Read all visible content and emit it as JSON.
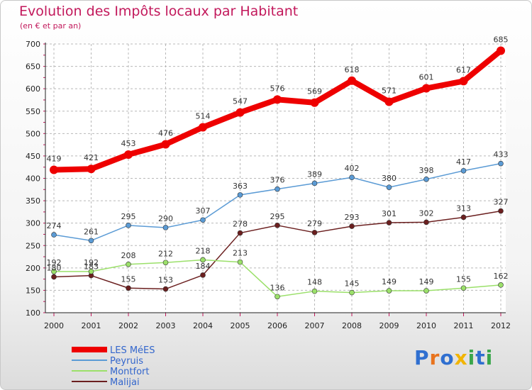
{
  "header": {
    "title": "Evolution des Impôts locaux par Habitant",
    "subtitle": "(en € et par an)"
  },
  "logo": {
    "text": "Proxiti",
    "letters": [
      "P",
      "r",
      "o",
      "x",
      "i",
      "t",
      "i"
    ],
    "colors": [
      "#2f6fd0",
      "#e8731d",
      "#2f6fd0",
      "#f2b400",
      "#3aa64b",
      "#2f6fd0",
      "#3aa64b"
    ]
  },
  "chart_data": {
    "type": "line",
    "title": "Evolution des Impôts locaux par Habitant",
    "subtitle": "(en € et par an)",
    "xlabel": "",
    "ylabel": "",
    "x": [
      "2000",
      "2001",
      "2002",
      "2003",
      "2004",
      "2005",
      "2006",
      "2007",
      "2008",
      "2009",
      "2010",
      "2011",
      "2012"
    ],
    "ylim": [
      100,
      700
    ],
    "yticks": [
      100,
      150,
      200,
      250,
      300,
      350,
      400,
      450,
      500,
      550,
      600,
      650,
      700
    ],
    "grid": true,
    "legend_position": "bottom-left",
    "series": [
      {
        "name": "LES MéES",
        "color": "#ee0000",
        "legend_color": "#3366cc",
        "width": 8,
        "marker": 6,
        "values": [
          419,
          421,
          453,
          476,
          514,
          547,
          576,
          569,
          618,
          571,
          601,
          617,
          685
        ]
      },
      {
        "name": "Peyruis",
        "color": "#5b9bd5",
        "legend_color": "#3366cc",
        "width": 1.5,
        "marker": 3.5,
        "values": [
          274,
          261,
          295,
          290,
          307,
          363,
          376,
          389,
          402,
          380,
          398,
          417,
          433
        ]
      },
      {
        "name": "Montfort",
        "color": "#9be06a",
        "legend_color": "#3366cc",
        "width": 1.5,
        "marker": 3.5,
        "values": [
          192,
          192,
          208,
          212,
          218,
          213,
          136,
          148,
          145,
          149,
          149,
          155,
          162
        ]
      },
      {
        "name": "Malijai",
        "color": "#6b1f1f",
        "legend_color": "#3366cc",
        "width": 1.5,
        "marker": 3.5,
        "values": [
          180,
          183,
          155,
          153,
          184,
          278,
          295,
          279,
          293,
          301,
          302,
          313,
          327
        ]
      }
    ]
  }
}
